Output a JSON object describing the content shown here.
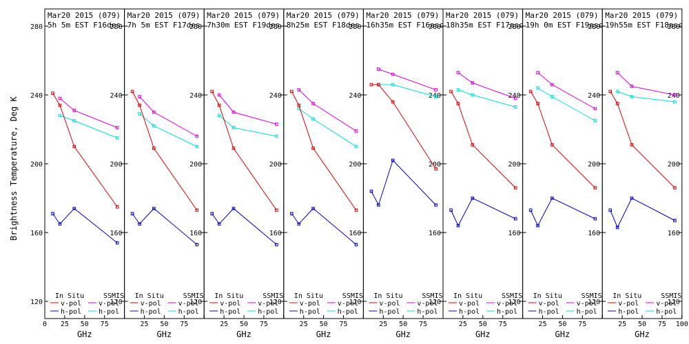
{
  "chart_data": {
    "type": "line",
    "ylabel": "Brightness Temperature, Deg K",
    "xlabel": "GHz",
    "ylim": [
      110,
      290
    ],
    "xlim": [
      0,
      100
    ],
    "y_ticks": [
      120,
      160,
      200,
      240,
      280
    ],
    "x_ticks": [
      0,
      25,
      50,
      75,
      100
    ],
    "x_tick_labels": [
      "0",
      "25",
      "50",
      "75",
      "100"
    ],
    "x": [
      10,
      19,
      37,
      91
    ],
    "legend": {
      "in_situ_label": "In Situ",
      "ssmis_label": "SSMIS",
      "vpol": "v-pol",
      "hpol": "h-pol"
    },
    "colors": {
      "insitu_v": "#dd0000",
      "insitu_h": "#0000cc",
      "ssmis_v": "#dd00dd",
      "ssmis_h": "#00dddd"
    },
    "panels": [
      {
        "title_line1": "Mar20 2015 (079)",
        "title_line2": "5h 5m  EST F16des",
        "insitu_v": [
          241,
          234,
          210,
          175
        ],
        "insitu_h": [
          171,
          165,
          174,
          154
        ],
        "ssmis_v": [
          238,
          231,
          221
        ],
        "ssmis_h": [
          228,
          225,
          215
        ]
      },
      {
        "title_line1": "Mar20 2015 (079)",
        "title_line2": "7h 5m  EST F17des",
        "insitu_v": [
          242,
          234,
          209,
          173
        ],
        "insitu_h": [
          171,
          165,
          174,
          153
        ],
        "ssmis_v": [
          239,
          230,
          216
        ],
        "ssmis_h": [
          229,
          222,
          210
        ]
      },
      {
        "title_line1": "Mar20 2015 (079)",
        "title_line2": "7h30m  EST F19des",
        "insitu_v": [
          242,
          234,
          209,
          173
        ],
        "insitu_h": [
          171,
          165,
          174,
          153
        ],
        "ssmis_v": [
          240,
          230,
          223
        ],
        "ssmis_h": [
          228,
          221,
          216
        ]
      },
      {
        "title_line1": "Mar20 2015 (079)",
        "title_line2": "8h25m  EST F18des",
        "insitu_v": [
          242,
          234,
          209,
          173
        ],
        "insitu_h": [
          171,
          165,
          174,
          153
        ],
        "ssmis_v": [
          243,
          235,
          219
        ],
        "ssmis_h": [
          232,
          226,
          210
        ]
      },
      {
        "title_line1": "Mar20 2015 (079)",
        "title_line2": "16h35m EST F16asc",
        "insitu_v": [
          246,
          246,
          236,
          197
        ],
        "insitu_h": [
          184,
          176,
          202,
          176
        ],
        "ssmis_v": [
          255,
          252,
          243
        ],
        "ssmis_h": [
          246,
          246,
          239
        ]
      },
      {
        "title_line1": "Mar20 2015 (079)",
        "title_line2": "18h35m EST F17asc",
        "insitu_v": [
          242,
          235,
          211,
          186
        ],
        "insitu_h": [
          173,
          164,
          180,
          168
        ],
        "ssmis_v": [
          253,
          247,
          238
        ],
        "ssmis_h": [
          243,
          240,
          233
        ]
      },
      {
        "title_line1": "Mar20 2015 (079)",
        "title_line2": "19h 0m  EST F19asc",
        "insitu_v": [
          242,
          235,
          211,
          186
        ],
        "insitu_h": [
          173,
          164,
          180,
          168
        ],
        "ssmis_v": [
          253,
          246,
          232
        ],
        "ssmis_h": [
          244,
          239,
          225
        ]
      },
      {
        "title_line1": "Mar20 2015 (079)",
        "title_line2": "19h55m EST F18asc",
        "insitu_v": [
          242,
          235,
          211,
          186
        ],
        "insitu_h": [
          173,
          163,
          180,
          167
        ],
        "ssmis_v": [
          253,
          245,
          240
        ],
        "ssmis_h": [
          242,
          239,
          236
        ]
      }
    ]
  }
}
